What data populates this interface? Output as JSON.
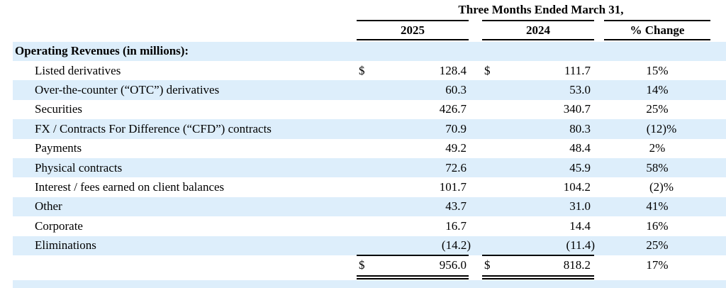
{
  "header": {
    "period": "Three Months Ended March 31,",
    "col_2025": "2025",
    "col_2024": "2024",
    "col_change": "% Change"
  },
  "section": {
    "title": "Operating Revenues (in millions):"
  },
  "currency_symbol": "$",
  "rows": [
    {
      "label": "Listed derivatives",
      "v2025": "128.4",
      "v2024": "111.7",
      "change": "15%",
      "dollar": true
    },
    {
      "label": "Over-the-counter (“OTC”) derivatives",
      "v2025": "60.3",
      "v2024": "53.0",
      "change": "14%"
    },
    {
      "label": "Securities",
      "v2025": "426.7",
      "v2024": "340.7",
      "change": "25%"
    },
    {
      "label": "FX / Contracts For Difference (“CFD”) contracts",
      "v2025": "70.9",
      "v2024": "80.3",
      "change": "(12)%"
    },
    {
      "label": "Payments",
      "v2025": "49.2",
      "v2024": "48.4",
      "change": "2%"
    },
    {
      "label": "Physical contracts",
      "v2025": "72.6",
      "v2024": "45.9",
      "change": "58%"
    },
    {
      "label": "Interest / fees earned on client balances",
      "v2025": "101.7",
      "v2024": "104.2",
      "change": "(2)%"
    },
    {
      "label": "Other",
      "v2025": "43.7",
      "v2024": "31.0",
      "change": "41%"
    },
    {
      "label": "Corporate",
      "v2025": "16.7",
      "v2024": "14.4",
      "change": "16%"
    },
    {
      "label": "Eliminations",
      "v2025": "(14.2)",
      "v2024": "(11.4)",
      "change": "25%"
    }
  ],
  "total": {
    "v2025": "956.0",
    "v2024": "818.2",
    "change": "17%"
  },
  "colors": {
    "shade": "#ddeefb",
    "text": "#000000"
  }
}
